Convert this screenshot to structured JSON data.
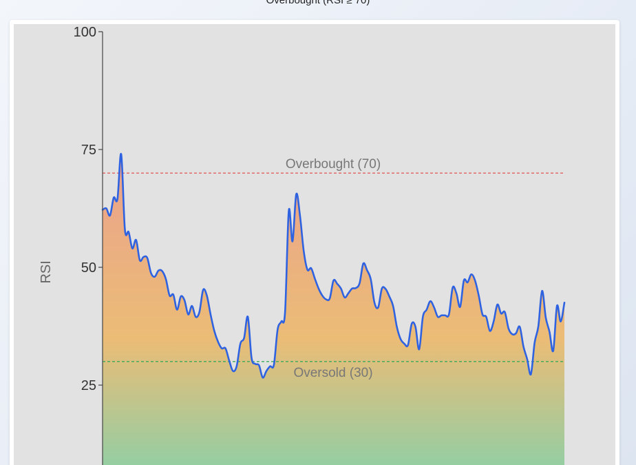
{
  "header": {
    "title": "Overbought (RSI ≥ 70)"
  },
  "chart_data": {
    "type": "area",
    "title": "Overbought (RSI ≥ 70)",
    "xlabel": "",
    "ylabel": "RSI",
    "ylim": [
      0,
      100
    ],
    "visible_ylim": [
      6,
      100
    ],
    "yticks": [
      25,
      50,
      75,
      100
    ],
    "grid": false,
    "colors": {
      "line": "#2e62e0",
      "overbought_line": "#e05555",
      "oversold_line": "#3aaa5c",
      "plot_bg": "#e2e2e2",
      "fill_high": "#eba48a",
      "fill_mid": "#ebbc76",
      "fill_low": "#8fcfa6"
    },
    "reference_lines": [
      {
        "label": "Overbought (70)",
        "y": 70,
        "color": "#e05555"
      },
      {
        "label": "Oversold (30)",
        "y": 30,
        "color": "#3aaa5c"
      }
    ],
    "values": [
      62.2,
      62.5,
      61,
      64.8,
      64.5,
      74,
      58,
      57.5,
      54,
      55.8,
      51.5,
      52.2,
      52,
      48.8,
      48,
      49.3,
      49.2,
      47.5,
      44,
      44.2,
      41,
      43.8,
      43,
      40,
      41.8,
      39.5,
      40.5,
      45.2,
      44,
      40,
      36.5,
      34.2,
      32.8,
      32.8,
      30.2,
      28,
      29,
      33.8,
      35,
      39.5,
      30.8,
      29.5,
      29.2,
      26.6,
      28,
      29,
      29.3,
      36.8,
      38.5,
      40.5,
      62,
      55.5,
      65.5,
      61,
      53.5,
      49.5,
      49.8,
      47.6,
      45.5,
      44,
      43.2,
      43.4,
      47.2,
      46.5,
      45.5,
      43.6,
      44.5,
      45.5,
      45.6,
      46.6,
      50.8,
      49.4,
      47.5,
      42.5,
      41.5,
      45.5,
      45.4,
      43.8,
      41.8,
      37.4,
      34.8,
      33.8,
      33.5,
      38,
      37.4,
      32.6,
      39.5,
      41,
      42.8,
      41.5,
      39.5,
      39.8,
      39.8,
      40,
      45.7,
      44.5,
      41.6,
      47.2,
      46.8,
      48.5,
      47.2,
      44,
      40,
      39.5,
      36.5,
      38.5,
      42.1,
      40.2,
      40.5,
      37,
      35.8,
      36,
      37.4,
      33.2,
      30.5,
      27.3,
      34,
      37.5,
      45,
      39.3,
      36.3,
      32.3,
      41.8,
      38.5,
      42.5
    ]
  }
}
